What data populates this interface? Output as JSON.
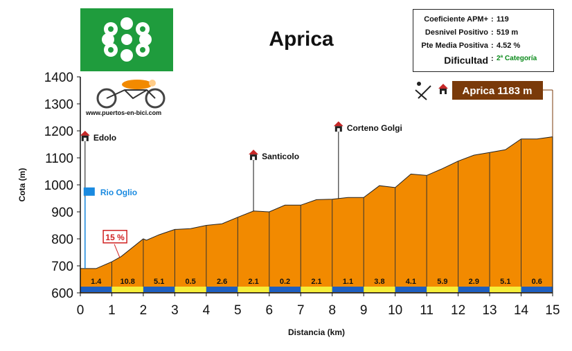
{
  "title": "Aprica",
  "logo": {
    "url_text": "www.puertos-en-bici.com",
    "flag_color": "#1f9c3d"
  },
  "info": {
    "rows": [
      {
        "label": "Coeficiente APM+",
        "value": "119"
      },
      {
        "label": "Desnivel Positivo",
        "value": "519 m"
      },
      {
        "label": "Pte Media Positiva",
        "value": "4.52 %"
      }
    ],
    "difficulty_label": "Dificultad",
    "difficulty_value": "2ª Categoría"
  },
  "chart_data": {
    "type": "area",
    "title": "Aprica",
    "xlabel": "Distancia (km)",
    "ylabel": "Cota (m)",
    "xlim": [
      0,
      15
    ],
    "ylim": [
      600,
      1400
    ],
    "xticks": [
      0,
      1,
      2,
      3,
      4,
      5,
      6,
      7,
      8,
      9,
      10,
      11,
      12,
      13,
      14,
      15
    ],
    "yticks": [
      600,
      700,
      800,
      900,
      1000,
      1100,
      1200,
      1300,
      1400
    ],
    "fill_color": "#f28a00",
    "profile": [
      {
        "x": 0,
        "y": 690
      },
      {
        "x": 0.5,
        "y": 690
      },
      {
        "x": 1,
        "y": 715
      },
      {
        "x": 1.3,
        "y": 735
      },
      {
        "x": 2,
        "y": 800
      },
      {
        "x": 2.1,
        "y": 795
      },
      {
        "x": 2.5,
        "y": 815
      },
      {
        "x": 3,
        "y": 835
      },
      {
        "x": 3.5,
        "y": 838
      },
      {
        "x": 4,
        "y": 850
      },
      {
        "x": 4.5,
        "y": 856
      },
      {
        "x": 5,
        "y": 880
      },
      {
        "x": 5.5,
        "y": 903
      },
      {
        "x": 6,
        "y": 900
      },
      {
        "x": 6.5,
        "y": 925
      },
      {
        "x": 7,
        "y": 925
      },
      {
        "x": 7.5,
        "y": 945
      },
      {
        "x": 8,
        "y": 947
      },
      {
        "x": 8.5,
        "y": 953
      },
      {
        "x": 9,
        "y": 953
      },
      {
        "x": 9.5,
        "y": 997
      },
      {
        "x": 10,
        "y": 990
      },
      {
        "x": 10.5,
        "y": 1040
      },
      {
        "x": 11,
        "y": 1035
      },
      {
        "x": 11.5,
        "y": 1060
      },
      {
        "x": 12,
        "y": 1088
      },
      {
        "x": 12.5,
        "y": 1110
      },
      {
        "x": 13,
        "y": 1120
      },
      {
        "x": 13.5,
        "y": 1130
      },
      {
        "x": 14,
        "y": 1170
      },
      {
        "x": 14.5,
        "y": 1170
      },
      {
        "x": 15,
        "y": 1178
      }
    ],
    "segments": [
      {
        "km": 0,
        "gradient": "1.4"
      },
      {
        "km": 1,
        "gradient": "10.8"
      },
      {
        "km": 2,
        "gradient": "5.1"
      },
      {
        "km": 3,
        "gradient": "0.5"
      },
      {
        "km": 4,
        "gradient": "2.6"
      },
      {
        "km": 5,
        "gradient": "2.1"
      },
      {
        "km": 6,
        "gradient": "0.2"
      },
      {
        "km": 7,
        "gradient": "2.1"
      },
      {
        "km": 8,
        "gradient": "1.1"
      },
      {
        "km": 9,
        "gradient": "3.8"
      },
      {
        "km": 10,
        "gradient": "4.1"
      },
      {
        "km": 11,
        "gradient": "5.9"
      },
      {
        "km": 12,
        "gradient": "2.9"
      },
      {
        "km": 13,
        "gradient": "5.1"
      },
      {
        "km": 14,
        "gradient": "0.6"
      }
    ],
    "segment_colors": [
      "#1e5fc0",
      "#f5ee3a"
    ],
    "annotations": [
      {
        "text": "Edolo",
        "x": 0.15,
        "y": 1185,
        "icon": "house-icon"
      },
      {
        "text": "Rio Oglio",
        "x": 0.15,
        "y": 975,
        "icon": "river-icon",
        "color": "#1a8ae0"
      },
      {
        "text": "Santicolo",
        "x": 5.5,
        "y": 1115,
        "icon": "house-icon"
      },
      {
        "text": "Corteno Golgi",
        "x": 8.2,
        "y": 1220,
        "icon": "house-icon"
      },
      {
        "text": "15 %",
        "x": 1.3,
        "y": 780,
        "icon": "gradient-flag",
        "color": "#d02020"
      }
    ],
    "summit_label": "Aprica 1183 m",
    "summit_label_color": "#7a3a0a"
  }
}
